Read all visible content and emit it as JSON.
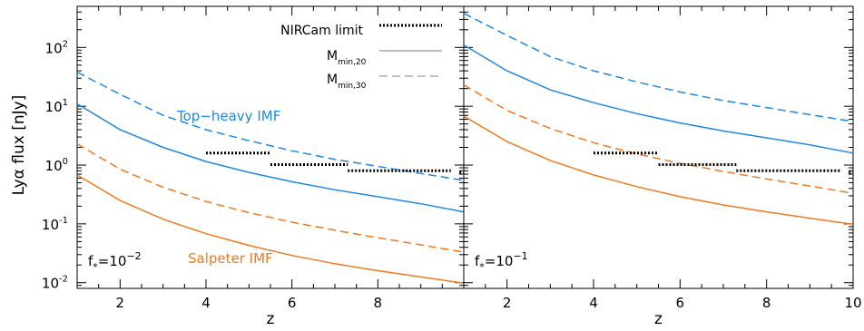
{
  "colors": {
    "topheavy": "#1f88e0",
    "salpeter": "#f07a1e",
    "limit": "#000000",
    "legend": "#9a9a9a"
  },
  "chart_data": {
    "type": "line",
    "ylabel": "Lyα flux [nJy]",
    "xlabel": "z",
    "xlim": [
      1,
      10
    ],
    "ylim": [
      0.008,
      500
    ],
    "yscale": "log",
    "yticks": [
      {
        "value": 0.01,
        "base": "10",
        "exp": "-2"
      },
      {
        "value": 0.1,
        "base": "10",
        "exp": "-1"
      },
      {
        "value": 1,
        "base": "10",
        "exp": "0"
      },
      {
        "value": 10,
        "base": "10",
        "exp": "1"
      },
      {
        "value": 100,
        "base": "10",
        "exp": "2"
      }
    ],
    "legend": {
      "position": "top-center",
      "entries": [
        {
          "label": "NIRCam limit",
          "style": "dotted",
          "sub": ""
        },
        {
          "label": "M",
          "sub": "min,20",
          "style": "solid"
        },
        {
          "label": "M",
          "sub": "min,30",
          "style": "dashed"
        }
      ]
    },
    "annotations": {
      "topheavy": "Top−heavy IMF",
      "salpeter": "Salpeter IMF"
    },
    "panels": [
      {
        "fstar_base": "f",
        "fstar_sub": "*",
        "fstar_val": "=10",
        "fstar_exp": "−2",
        "xticks": [
          "2",
          "4",
          "6",
          "8"
        ],
        "xtick_values": [
          2,
          4,
          6,
          8
        ],
        "series": [
          {
            "imf": "topheavy",
            "halo": "Mmin,20",
            "style": "solid",
            "x": [
              1,
              2,
              3,
              4,
              5,
              6,
              7,
              8,
              9,
              10
            ],
            "y": [
              11,
              4.0,
              2.0,
              1.15,
              0.75,
              0.52,
              0.38,
              0.29,
              0.22,
              0.16
            ]
          },
          {
            "imf": "topheavy",
            "halo": "Mmin,30",
            "style": "dashed",
            "x": [
              1,
              2,
              3,
              4,
              5,
              6,
              7,
              8,
              9,
              10
            ],
            "y": [
              38,
              16,
              7.0,
              4.0,
              2.6,
              1.75,
              1.25,
              0.95,
              0.72,
              0.55
            ]
          },
          {
            "imf": "salpeter",
            "halo": "Mmin,20",
            "style": "solid",
            "x": [
              1,
              2,
              3,
              4,
              5,
              6,
              7,
              8,
              9,
              10
            ],
            "y": [
              0.68,
              0.25,
              0.12,
              0.068,
              0.043,
              0.029,
              0.021,
              0.016,
              0.0125,
              0.0098
            ]
          },
          {
            "imf": "salpeter",
            "halo": "Mmin,30",
            "style": "dashed",
            "x": [
              1,
              2,
              3,
              4,
              5,
              6,
              7,
              8,
              9,
              10
            ],
            "y": [
              2.3,
              0.85,
              0.42,
              0.24,
              0.155,
              0.107,
              0.078,
              0.058,
              0.044,
              0.033
            ]
          }
        ],
        "limits": [
          {
            "x": [
              4.0,
              5.5
            ],
            "y": 1.6
          },
          {
            "x": [
              5.5,
              7.3
            ],
            "y": 1.02
          },
          {
            "x": [
              7.3,
              9.7
            ],
            "y": 0.8
          },
          {
            "x": [
              9.9,
              10.0
            ],
            "y": 0.75
          }
        ]
      },
      {
        "fstar_base": "f",
        "fstar_sub": "*",
        "fstar_val": "=10",
        "fstar_exp": "−1",
        "xticks": [
          "2",
          "4",
          "6",
          "8",
          "10"
        ],
        "xtick_values": [
          2,
          4,
          6,
          8,
          10
        ],
        "series": [
          {
            "imf": "topheavy",
            "halo": "Mmin,20",
            "style": "solid",
            "x": [
              1,
              2,
              3,
              4,
              5,
              6,
              7,
              8,
              9,
              10
            ],
            "y": [
              110,
              40,
              19,
              11.5,
              7.5,
              5.2,
              3.8,
              2.9,
              2.2,
              1.6
            ]
          },
          {
            "imf": "topheavy",
            "halo": "Mmin,30",
            "style": "dashed",
            "x": [
              1,
              2,
              3,
              4,
              5,
              6,
              7,
              8,
              9,
              10
            ],
            "y": [
              380,
              160,
              70,
              40,
              26,
              17.5,
              12.5,
              9.5,
              7.2,
              5.5
            ]
          },
          {
            "imf": "salpeter",
            "halo": "Mmin,20",
            "style": "solid",
            "x": [
              1,
              2,
              3,
              4,
              5,
              6,
              7,
              8,
              9,
              10
            ],
            "y": [
              6.8,
              2.5,
              1.2,
              0.68,
              0.43,
              0.29,
              0.21,
              0.16,
              0.125,
              0.098
            ]
          },
          {
            "imf": "salpeter",
            "halo": "Mmin,30",
            "style": "dashed",
            "x": [
              1,
              2,
              3,
              4,
              5,
              6,
              7,
              8,
              9,
              10
            ],
            "y": [
              23,
              8.5,
              4.2,
              2.4,
              1.55,
              1.07,
              0.78,
              0.58,
              0.44,
              0.33
            ]
          }
        ],
        "limits": [
          {
            "x": [
              4.0,
              5.5
            ],
            "y": 1.6
          },
          {
            "x": [
              5.5,
              7.3
            ],
            "y": 1.02
          },
          {
            "x": [
              7.3,
              9.7
            ],
            "y": 0.8
          },
          {
            "x": [
              9.9,
              10.0
            ],
            "y": 0.75
          }
        ]
      }
    ]
  }
}
